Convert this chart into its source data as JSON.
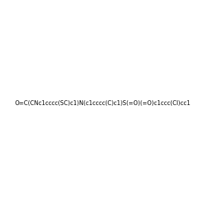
{
  "smiles": "O=C(CNc1cccc(SC)c1)N(c1cccc(C)c1)S(=O)(=O)c1ccc(Cl)cc1",
  "title": "",
  "figsize": [
    3.0,
    3.0
  ],
  "dpi": 100,
  "bg_color": "#f0f0f0"
}
